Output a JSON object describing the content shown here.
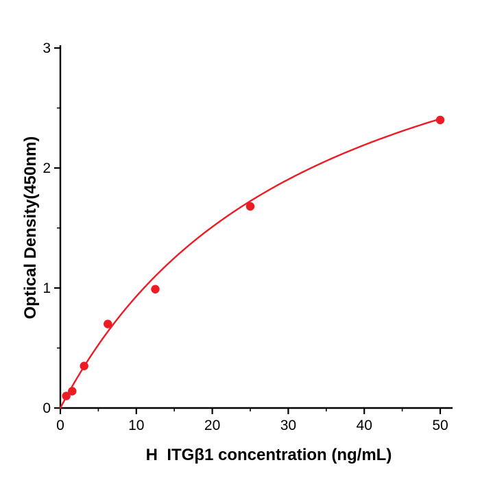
{
  "chart_data": {
    "type": "scatter",
    "title": "",
    "xlabel": "H  ITGβ1 concentration (ng/mL)",
    "ylabel": "Optical Density(450nm)",
    "xlim": [
      0,
      50
    ],
    "ylim": [
      0,
      3
    ],
    "grid": false,
    "legend_position": "none",
    "x_major_ticks": [
      0,
      10,
      20,
      30,
      40,
      50
    ],
    "x_minor_ticks": [
      5,
      15,
      25,
      35,
      45
    ],
    "y_major_ticks": [
      0,
      1,
      2,
      3
    ],
    "y_minor_ticks": [
      0.5,
      1.5,
      2.5
    ],
    "points": [
      {
        "x": 0.78,
        "y": 0.1
      },
      {
        "x": 1.56,
        "y": 0.14
      },
      {
        "x": 3.13,
        "y": 0.35
      },
      {
        "x": 6.25,
        "y": 0.7
      },
      {
        "x": 12.5,
        "y": 0.99
      },
      {
        "x": 25,
        "y": 1.68
      },
      {
        "x": 50,
        "y": 2.4
      }
    ],
    "fit_curve": {
      "model": "michaelis_menten",
      "vmax": 4.0,
      "km": 33.0
    },
    "point_color": "#ed1c24",
    "line_color": "#ed1c24",
    "axis_color": "#000000"
  }
}
